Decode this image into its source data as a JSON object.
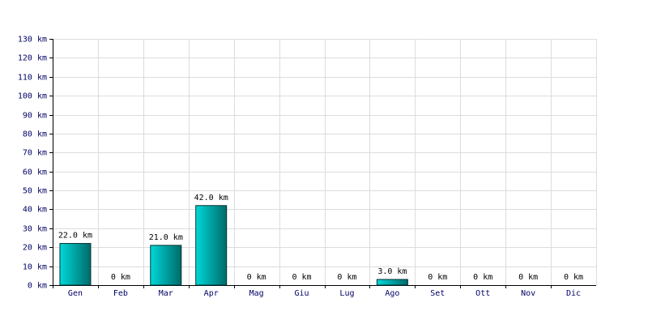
{
  "chart_data": {
    "type": "bar",
    "categories": [
      "Gen",
      "Feb",
      "Mar",
      "Apr",
      "Mag",
      "Giu",
      "Lug",
      "Ago",
      "Set",
      "Ott",
      "Nov",
      "Dic"
    ],
    "values": [
      22,
      0,
      21,
      42,
      0,
      0,
      0,
      3,
      0,
      0,
      0,
      0
    ],
    "value_labels": [
      "22.0 km",
      "0 km",
      "21.0 km",
      "42.0 km",
      "0 km",
      "0 km",
      "0 km",
      "3.0 km",
      "0 km",
      "0 km",
      "0 km",
      "0 km"
    ],
    "color": "#00d8d8",
    "ylim": [
      0,
      130
    ],
    "yticks": [
      {
        "value": 0,
        "label": "0 km"
      },
      {
        "value": 10,
        "label": "10 km"
      },
      {
        "value": 20,
        "label": "20 km"
      },
      {
        "value": 30,
        "label": "30 km"
      },
      {
        "value": 40,
        "label": "40 km"
      },
      {
        "value": 50,
        "label": "50 km"
      },
      {
        "value": 60,
        "label": "60 km"
      },
      {
        "value": 70,
        "label": "70 km"
      },
      {
        "value": 80,
        "label": "80 km"
      },
      {
        "value": 90,
        "label": "90 km"
      },
      {
        "value": 100,
        "label": "100 km"
      },
      {
        "value": 110,
        "label": "110 km"
      },
      {
        "value": 120,
        "label": "120 km"
      },
      {
        "value": 130,
        "label": "130 km"
      }
    ],
    "grid": true
  }
}
